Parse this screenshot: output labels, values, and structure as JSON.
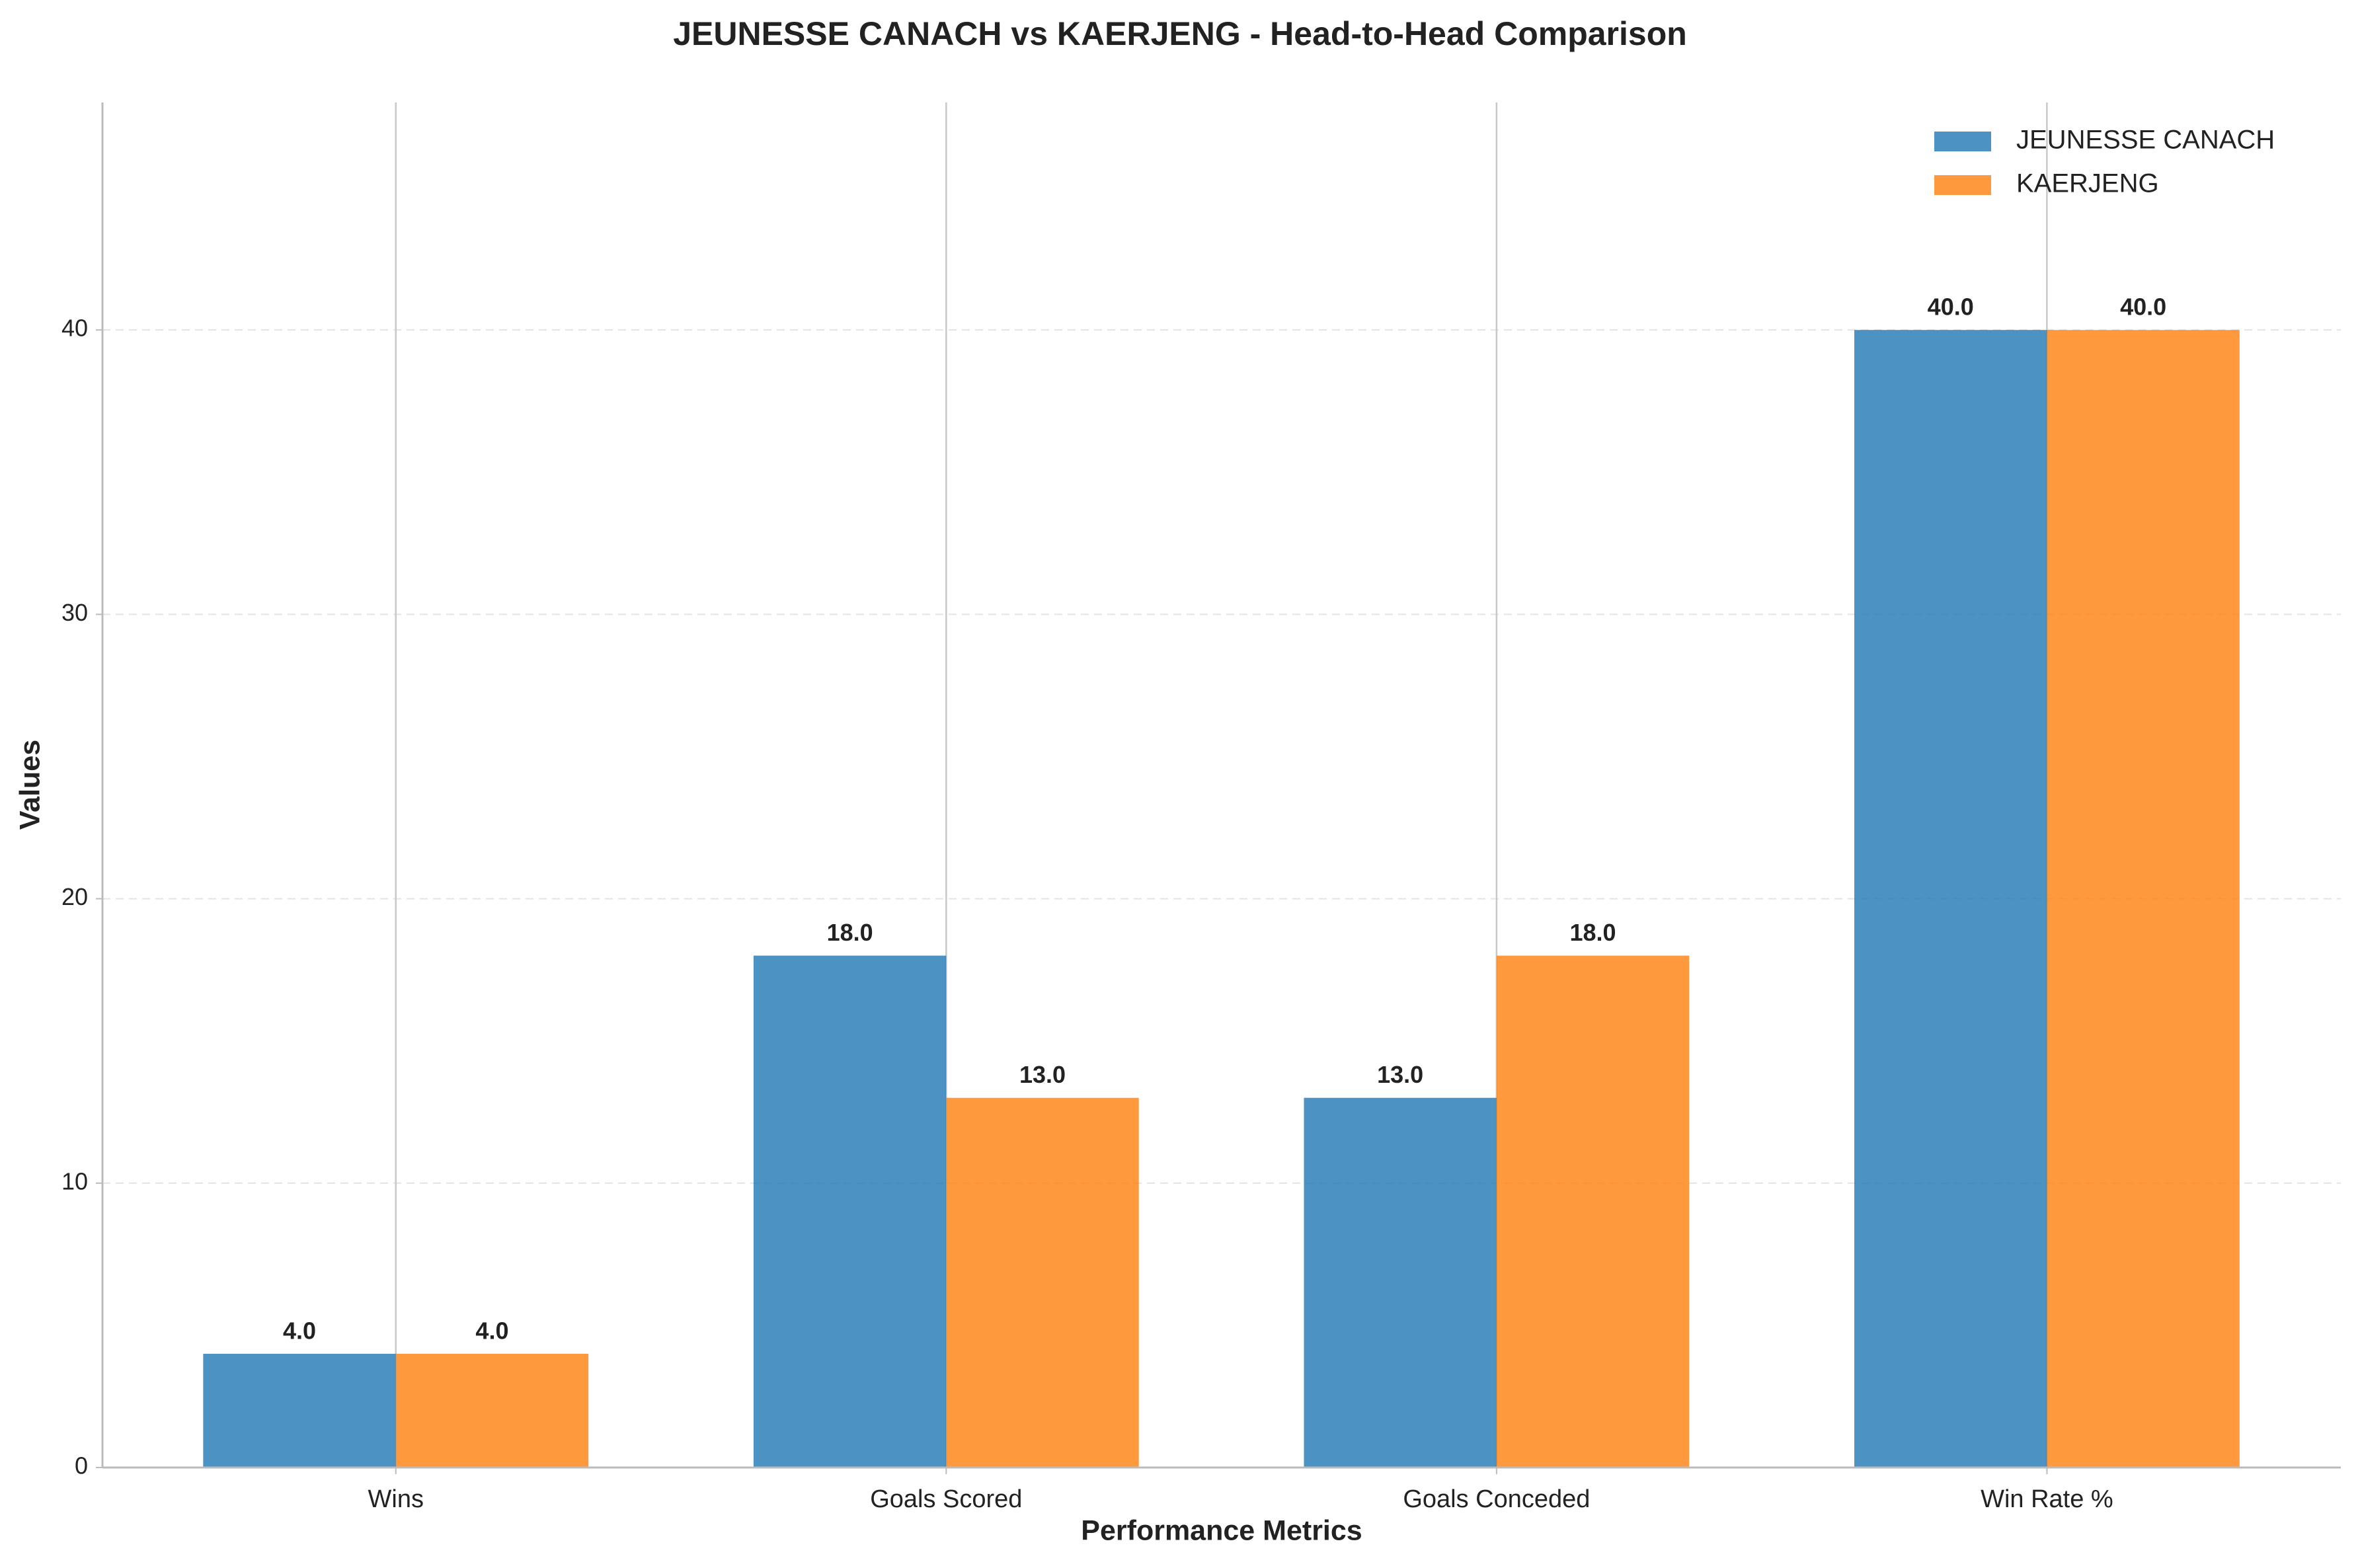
{
  "chart_data": {
    "type": "bar",
    "title": "JEUNESSE CANACH vs KAERJENG - Head-to-Head Comparison",
    "x_label": "Performance Metrics",
    "y_label": "Values",
    "categories": [
      "Wins",
      "Goals Scored",
      "Goals Conceded",
      "Win Rate %"
    ],
    "series": [
      {
        "name": "JEUNESSE CANACH",
        "color": "#1f77b4",
        "values": [
          4,
          18,
          13,
          40
        ],
        "value_labels": [
          "4.0",
          "18.0",
          "13.0",
          "40.0"
        ]
      },
      {
        "name": "KAERJENG",
        "color": "#ff7f0e",
        "values": [
          4,
          13,
          18,
          40
        ],
        "value_labels": [
          "4.0",
          "13.0",
          "18.0",
          "40.0"
        ]
      }
    ],
    "ylim": [
      0,
      48
    ],
    "yticks": [
      0,
      10,
      20,
      30,
      40
    ],
    "grid": true,
    "legend": "upper right"
  }
}
